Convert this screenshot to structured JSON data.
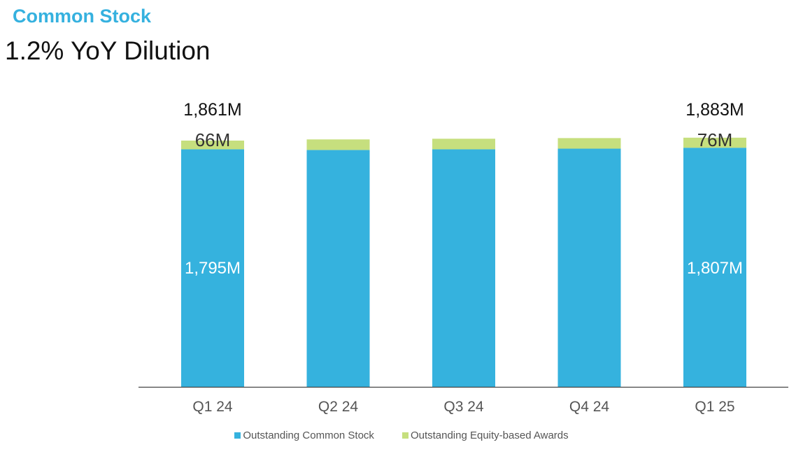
{
  "header": {
    "eyebrow": "Common Stock",
    "title": "1.2% YoY Dilution"
  },
  "colors": {
    "accent": "#35b1df",
    "common": "#35b2de",
    "awards": "#c6df7e",
    "axis": "#444444"
  },
  "chart_data": {
    "type": "bar",
    "stacked": true,
    "title": "1.2% YoY Dilution",
    "categories": [
      "Q1 24",
      "Q2 24",
      "Q3 24",
      "Q4 24",
      "Q1 25"
    ],
    "series": [
      {
        "name": "Outstanding Common Stock",
        "values": [
          1795,
          1790,
          1795,
          1800,
          1807
        ]
      },
      {
        "name": "Outstanding Equity-based Awards",
        "values": [
          66,
          80,
          80,
          80,
          76
        ]
      }
    ],
    "ylim": [
      0,
      1900
    ],
    "units": "M",
    "totals": {
      "Q1 24": "1,861M",
      "Q1 25": "1,883M"
    },
    "labels": {
      "Q1 24": {
        "common": "1,795M",
        "awards": "66M"
      },
      "Q1 25": {
        "common": "1,807M",
        "awards": "76M"
      }
    },
    "legend_position": "bottom"
  }
}
